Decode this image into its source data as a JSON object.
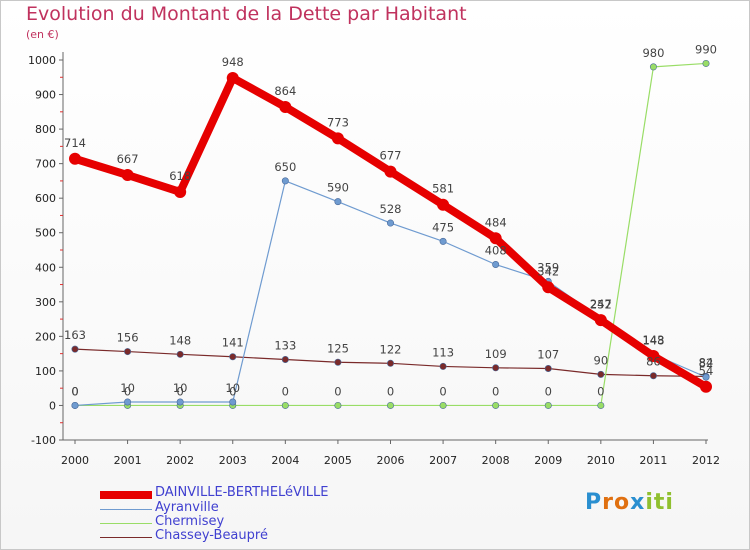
{
  "chart_data": {
    "type": "line",
    "title": "Evolution du Montant de la Dette par Habitant",
    "subtitle": "(en €)",
    "xlabel": "",
    "ylabel": "",
    "x": [
      "2000",
      "2001",
      "2002",
      "2003",
      "2004",
      "2005",
      "2006",
      "2007",
      "2008",
      "2009",
      "2010",
      "2011",
      "2012"
    ],
    "ylim": [
      -100,
      1000
    ],
    "yticks": [
      "-100",
      "0",
      "100",
      "200",
      "300",
      "400",
      "500",
      "600",
      "700",
      "800",
      "900",
      "1000"
    ],
    "series": [
      {
        "name": "DAINVILLE-BERTHELéVILLE",
        "color": "#e60000",
        "values": [
          714,
          667,
          618,
          948,
          864,
          773,
          677,
          581,
          484,
          342,
          247,
          143,
          54
        ],
        "labels": [
          "714",
          "667",
          "618",
          "948",
          "864",
          "773",
          "677",
          "581",
          "484",
          "342",
          "247",
          "143",
          "54"
        ]
      },
      {
        "name": "Ayranville",
        "color": "#6f9bd0",
        "values": [
          0,
          10,
          10,
          10,
          650,
          590,
          528,
          475,
          408,
          359,
          252,
          148,
          82
        ],
        "labels": [
          "0",
          "10",
          "10",
          "10",
          "650",
          "590",
          "528",
          "475",
          "408",
          "359",
          "252",
          "148",
          "82"
        ]
      },
      {
        "name": "Chermisey",
        "color": "#99dd66",
        "values": [
          0,
          0,
          0,
          0,
          0,
          0,
          0,
          0,
          0,
          0,
          0,
          980,
          990
        ],
        "labels": [
          "0",
          "0",
          "0",
          "0",
          "0",
          "0",
          "0",
          "0",
          "0",
          "0",
          "0",
          "980",
          "990"
        ]
      },
      {
        "name": "Chassey-Beaupré",
        "color": "#7a2a2a",
        "values": [
          163,
          156,
          148,
          141,
          133,
          125,
          122,
          113,
          109,
          107,
          90,
          86,
          84
        ],
        "labels": [
          "163",
          "156",
          "148",
          "141",
          "133",
          "125",
          "122",
          "113",
          "109",
          "107",
          "90",
          "86",
          "84"
        ]
      }
    ],
    "legend_position": "bottom-left"
  },
  "logo": {
    "letters": [
      "P",
      "r",
      "o",
      "x",
      "i",
      "t",
      "i"
    ],
    "colors": [
      "#2a8fd0",
      "#e07010",
      "#e07010",
      "#2a8fd0",
      "#90c030",
      "#90c030",
      "#90c030"
    ]
  }
}
